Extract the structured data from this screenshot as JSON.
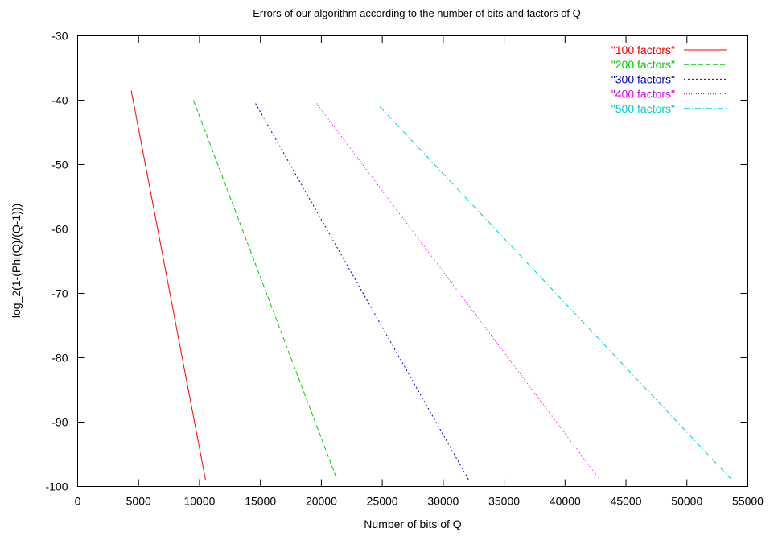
{
  "chart_data": {
    "type": "line",
    "title": "Errors of our algorithm according to the number of bits and factors of Q",
    "xlabel": "Number of bits of Q",
    "ylabel": "log_2(1-(Phi(Q)/(Q-1)))",
    "xlim": [
      0,
      55000
    ],
    "ylim": [
      -100,
      -30
    ],
    "xticks": [
      "0",
      "5000",
      "10000",
      "15000",
      "20000",
      "25000",
      "30000",
      "35000",
      "40000",
      "45000",
      "50000",
      "55000"
    ],
    "yticks": [
      "-30",
      "-40",
      "-50",
      "-60",
      "-70",
      "-80",
      "-90",
      "-100"
    ],
    "xtick_values": [
      0,
      5000,
      10000,
      15000,
      20000,
      25000,
      30000,
      35000,
      40000,
      45000,
      50000,
      55000
    ],
    "ytick_values": [
      -30,
      -40,
      -50,
      -60,
      -70,
      -80,
      -90,
      -100
    ],
    "grid": false,
    "legend_position": "top-right",
    "series": [
      {
        "name": "\"100 factors\"",
        "color": "#ff0000",
        "dash": "solid",
        "x": [
          4400,
          10500
        ],
        "y": [
          -38.5,
          -99
        ]
      },
      {
        "name": "\"200 factors\"",
        "color": "#00cc00",
        "dash": "dashed",
        "x": [
          9500,
          21300
        ],
        "y": [
          -40,
          -99
        ]
      },
      {
        "name": "\"300 factors\"",
        "color": "#0000bb",
        "dash": "dotted-short",
        "x": [
          14600,
          32100
        ],
        "y": [
          -40.5,
          -99
        ]
      },
      {
        "name": "\"400 factors\"",
        "color": "#dd00dd",
        "dash": "dotted",
        "x": [
          19600,
          42800
        ],
        "y": [
          -40.5,
          -98.8
        ]
      },
      {
        "name": "\"500 factors\"",
        "color": "#00cccc",
        "dash": "dash-dot",
        "x": [
          24800,
          53600
        ],
        "y": [
          -41,
          -98.8
        ]
      }
    ]
  }
}
